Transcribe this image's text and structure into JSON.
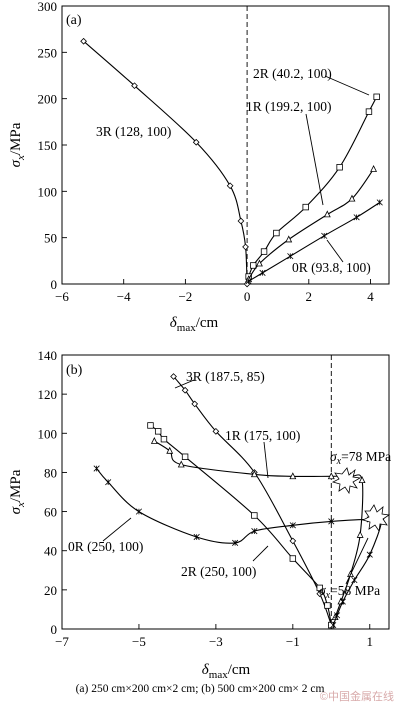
{
  "caption": "(a) 250 cm×200 cm×2 cm; (b) 500 cm×200 cm× 2 cm",
  "watermark": "©中国金属在线",
  "chart_data": [
    {
      "type": "line",
      "panel_label": "(a)",
      "xlabel_main": "δ",
      "xlabel_sub": "max",
      "xlabel_unit": "/cm",
      "ylabel_main": "σ",
      "ylabel_sub": "x",
      "ylabel_unit": "/MPa",
      "xlim": [
        -6,
        4.6
      ],
      "ylim": [
        0,
        300
      ],
      "xticks": [
        -6,
        -4,
        -2,
        0,
        2,
        4
      ],
      "yticks": [
        0,
        50,
        100,
        150,
        200,
        250,
        300
      ],
      "dashed_vline_x": 0,
      "series": [
        {
          "name": "3R (128, 100)",
          "marker": "diamond",
          "x": [
            -5.3,
            -3.65,
            -1.65,
            -0.55,
            -0.2,
            -0.05,
            0.0
          ],
          "y": [
            262,
            214,
            153,
            106,
            68,
            40,
            0
          ]
        },
        {
          "name": "2R (40.2, 100)",
          "marker": "square",
          "x": [
            0.05,
            0.2,
            0.55,
            0.95,
            1.9,
            3.0,
            3.95,
            4.2
          ],
          "y": [
            8,
            20,
            35,
            55,
            83,
            126,
            186,
            202
          ]
        },
        {
          "name": "1R (199.2, 100)",
          "marker": "triangle",
          "x": [
            0.05,
            0.4,
            1.35,
            2.6,
            3.4,
            4.1
          ],
          "y": [
            5,
            22,
            48,
            75,
            92,
            124
          ]
        },
        {
          "name": "0R (93.8, 100)",
          "marker": "star",
          "x": [
            0.05,
            0.5,
            1.4,
            2.5,
            3.55,
            4.3
          ],
          "y": [
            3,
            12,
            30,
            52,
            72,
            88
          ]
        }
      ]
    },
    {
      "type": "line",
      "panel_label": "(b)",
      "xlabel_main": "δ",
      "xlabel_sub": "max",
      "xlabel_unit": "/cm",
      "ylabel_main": "σ",
      "ylabel_sub": "x",
      "ylabel_unit": "/MPa",
      "xlim": [
        -7,
        1.5
      ],
      "ylim": [
        0,
        140
      ],
      "xticks": [
        -7,
        -5,
        -3,
        -1,
        1
      ],
      "yticks": [
        0,
        20,
        40,
        60,
        80,
        100,
        120,
        140
      ],
      "dashed_vline_x": 0,
      "series": [
        {
          "name": "3R (187.5, 85)",
          "marker": "diamond",
          "x": [
            -4.1,
            -3.8,
            -3.55,
            -3.0,
            -2.0,
            -1.0,
            -0.3,
            0.0
          ],
          "y": [
            129,
            122,
            115,
            101,
            80,
            45,
            18,
            2
          ]
        },
        {
          "name": "1R (175, 100)",
          "marker": "triangle",
          "x": [
            -4.6,
            -4.2,
            -3.9,
            -2.0,
            -1.0,
            0.0,
            0.5,
            0.8,
            0.75,
            0.5,
            0.25,
            0.1
          ],
          "y": [
            96,
            91,
            84,
            79,
            78,
            78,
            78,
            76,
            48,
            28,
            14,
            6
          ]
        },
        {
          "name": "2R (250, 100)",
          "marker": "square",
          "x": [
            -4.7,
            -4.5,
            -4.35,
            -3.8,
            -2.0,
            -1.0,
            -0.3,
            -0.1,
            0.0
          ],
          "y": [
            104,
            101,
            97,
            88,
            58,
            36,
            21,
            12,
            2
          ]
        },
        {
          "name": "0R (250, 100)",
          "marker": "star",
          "x": [
            -6.1,
            -5.8,
            -5.0,
            -3.5,
            -2.5,
            -2.0,
            -1.0,
            0.0,
            1.0,
            1.3,
            1.0,
            0.6,
            0.3,
            0.15,
            0.05
          ],
          "y": [
            82,
            75,
            60,
            47,
            44,
            50,
            53,
            55,
            56,
            55,
            38,
            25,
            14,
            7,
            2
          ]
        }
      ]
    }
  ],
  "annotations_a": {
    "label_3R": "3R (128, 100)",
    "label_2R": "2R (40.2, 100)",
    "label_1R": "1R (199.2, 100)",
    "label_0R": "0R (93.8, 100)"
  },
  "annotations_b": {
    "label_3R": "3R (187.5, 85)",
    "label_1R": "1R (175, 100)",
    "label_2R": "2R (250, 100)",
    "label_0R": "0R (250, 100)",
    "sigma_78_value": "=78 MPa",
    "sigma_58_value": "=58 MPa"
  }
}
